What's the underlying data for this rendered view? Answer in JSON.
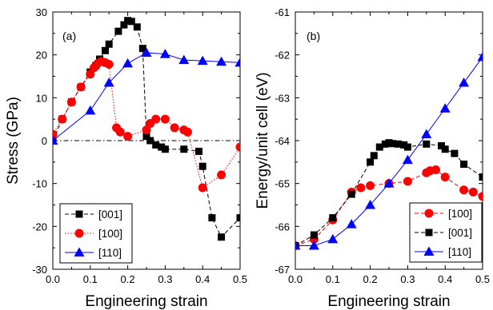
{
  "chart_data": [
    {
      "type": "line",
      "panel_label": "(a)",
      "xlabel": "Engineering strain",
      "ylabel": "Stress (GPa)",
      "xlim": [
        0.0,
        0.5
      ],
      "ylim": [
        -30,
        30
      ],
      "xticks": [
        "0.0",
        "0.1",
        "0.2",
        "0.3",
        "0.4",
        "0.5"
      ],
      "yticks": [
        "-30",
        "-20",
        "-10",
        "0",
        "10",
        "20",
        "30"
      ],
      "zero_line": true,
      "legend_position": "bottom-left",
      "series": [
        {
          "name": "[001]",
          "color": "#000000",
          "marker": "square",
          "line": "dashed",
          "x": [
            0.0,
            0.025,
            0.05,
            0.075,
            0.1,
            0.115,
            0.125,
            0.14,
            0.15,
            0.175,
            0.19,
            0.2,
            0.21,
            0.225,
            0.24,
            0.25,
            0.26,
            0.275,
            0.29,
            0.3,
            0.35,
            0.39,
            0.4,
            0.425,
            0.45,
            0.5
          ],
          "y": [
            0.0,
            5.0,
            9.0,
            12.5,
            16.0,
            17.5,
            19.0,
            21.0,
            22.5,
            25.5,
            27.0,
            28.0,
            27.8,
            26.5,
            21.5,
            1.0,
            0.0,
            -1.0,
            -1.5,
            -2.0,
            -2.0,
            -2.5,
            -6.0,
            -18.0,
            -22.5,
            -18.0
          ]
        },
        {
          "name": "[100]",
          "color": "#ff0000",
          "marker": "circle",
          "line": "dotted",
          "x": [
            0.0,
            0.025,
            0.05,
            0.075,
            0.1,
            0.11,
            0.12,
            0.13,
            0.14,
            0.15,
            0.17,
            0.18,
            0.2,
            0.25,
            0.26,
            0.275,
            0.3,
            0.325,
            0.35,
            0.36,
            0.4,
            0.45,
            0.5
          ],
          "y": [
            1.5,
            5.0,
            9.0,
            12.5,
            15.5,
            17.0,
            18.0,
            18.5,
            18.2,
            17.8,
            3.0,
            2.0,
            1.0,
            2.5,
            4.0,
            5.0,
            5.0,
            3.0,
            2.5,
            2.0,
            -11.0,
            -8.0,
            -1.5
          ]
        },
        {
          "name": "[110]",
          "color": "#0000ff",
          "marker": "triangle",
          "line": "solid",
          "x": [
            0.0,
            0.1,
            0.15,
            0.2,
            0.25,
            0.3,
            0.35,
            0.4,
            0.45,
            0.5
          ],
          "y": [
            0.0,
            7.0,
            13.5,
            18.0,
            20.5,
            20.2,
            18.8,
            18.6,
            18.4,
            18.2
          ]
        }
      ]
    },
    {
      "type": "line",
      "panel_label": "(b)",
      "xlabel": "Engineering strain",
      "ylabel": "Energy/unit cell (eV)",
      "xlim": [
        0.0,
        0.5
      ],
      "ylim": [
        -67,
        -61
      ],
      "xticks": [
        "0.0",
        "0.1",
        "0.2",
        "0.3",
        "0.4",
        "0.5"
      ],
      "yticks": [
        "-67",
        "-66",
        "-65",
        "-64",
        "-63",
        "-62",
        "-61"
      ],
      "zero_line": false,
      "legend_position": "bottom-right",
      "series": [
        {
          "name": "[100]",
          "color": "#ff0000",
          "marker": "circle",
          "line": "dashed",
          "x": [
            0.0,
            0.05,
            0.1,
            0.15,
            0.175,
            0.2,
            0.25,
            0.3,
            0.35,
            0.36,
            0.375,
            0.4,
            0.45,
            0.475,
            0.5
          ],
          "y": [
            -66.45,
            -66.3,
            -65.85,
            -65.2,
            -65.1,
            -65.05,
            -65.0,
            -64.95,
            -64.75,
            -64.7,
            -64.68,
            -64.85,
            -65.15,
            -65.2,
            -65.3
          ]
        },
        {
          "name": "[001]",
          "color": "#000000",
          "marker": "square",
          "line": "dashed",
          "x": [
            0.0,
            0.05,
            0.1,
            0.15,
            0.2,
            0.21,
            0.225,
            0.24,
            0.25,
            0.26,
            0.275,
            0.29,
            0.3,
            0.35,
            0.39,
            0.4,
            0.425,
            0.45,
            0.5
          ],
          "y": [
            -66.45,
            -66.2,
            -65.8,
            -65.25,
            -64.5,
            -64.35,
            -64.15,
            -64.08,
            -64.05,
            -64.07,
            -64.08,
            -64.1,
            -64.15,
            -64.08,
            -64.12,
            -64.2,
            -64.3,
            -64.55,
            -64.85
          ]
        },
        {
          "name": "[110]",
          "color": "#0000ff",
          "marker": "triangle",
          "line": "solid",
          "x": [
            0.0,
            0.05,
            0.1,
            0.15,
            0.2,
            0.25,
            0.3,
            0.35,
            0.4,
            0.45,
            0.5
          ],
          "y": [
            -66.45,
            -66.45,
            -66.3,
            -65.95,
            -65.5,
            -65.0,
            -64.45,
            -63.85,
            -63.25,
            -62.65,
            -62.05
          ]
        }
      ]
    }
  ]
}
